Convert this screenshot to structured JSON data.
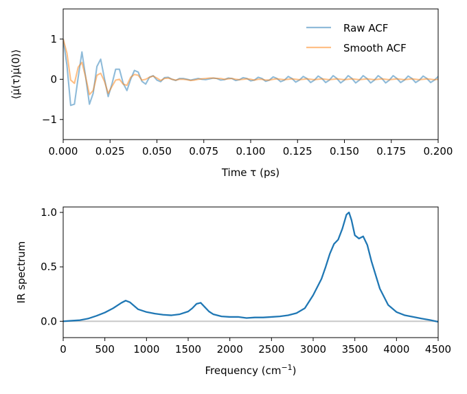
{
  "chart_data": [
    {
      "type": "line",
      "title": "",
      "xlabel": "Time τ (ps)",
      "ylabel": "⟨μ̇(τ)μ̇(0)⟩",
      "xlim": [
        0,
        0.2
      ],
      "ylim": [
        -1.5,
        1.75
      ],
      "xticks": [
        0.0,
        0.025,
        0.05,
        0.075,
        0.1,
        0.125,
        0.15,
        0.175,
        0.2
      ],
      "xtick_labels": [
        "0.000",
        "0.025",
        "0.050",
        "0.075",
        "0.100",
        "0.125",
        "0.150",
        "0.175",
        "0.200"
      ],
      "yticks": [
        -1,
        0,
        1
      ],
      "ytick_labels": [
        "−1",
        "0",
        "1"
      ],
      "legend_position": "top-right",
      "series": [
        {
          "name": "Raw ACF",
          "color": "#1f77b4",
          "opacity": 0.5,
          "x": [
            0.0,
            0.002,
            0.004,
            0.006,
            0.008,
            0.01,
            0.012,
            0.014,
            0.016,
            0.018,
            0.02,
            0.022,
            0.024,
            0.026,
            0.028,
            0.03,
            0.032,
            0.034,
            0.036,
            0.038,
            0.04,
            0.042,
            0.044,
            0.046,
            0.048,
            0.05,
            0.052,
            0.054,
            0.056,
            0.058,
            0.06,
            0.062,
            0.064,
            0.066,
            0.068,
            0.07,
            0.072,
            0.074,
            0.076,
            0.078,
            0.08,
            0.082,
            0.084,
            0.086,
            0.088,
            0.09,
            0.092,
            0.094,
            0.096,
            0.098,
            0.1,
            0.102,
            0.104,
            0.106,
            0.108,
            0.11,
            0.112,
            0.114,
            0.116,
            0.118,
            0.12,
            0.122,
            0.124,
            0.126,
            0.128,
            0.13,
            0.132,
            0.134,
            0.136,
            0.138,
            0.14,
            0.142,
            0.144,
            0.146,
            0.148,
            0.15,
            0.152,
            0.154,
            0.156,
            0.158,
            0.16,
            0.162,
            0.164,
            0.166,
            0.168,
            0.17,
            0.172,
            0.174,
            0.176,
            0.178,
            0.18,
            0.182,
            0.184,
            0.186,
            0.188,
            0.19,
            0.192,
            0.194,
            0.196,
            0.198,
            0.2
          ],
          "y": [
            1.0,
            0.35,
            -0.65,
            -0.62,
            0.05,
            0.68,
            0.05,
            -0.62,
            -0.35,
            0.32,
            0.5,
            0.02,
            -0.43,
            -0.12,
            0.25,
            0.25,
            -0.1,
            -0.28,
            0.0,
            0.22,
            0.18,
            -0.05,
            -0.12,
            0.05,
            0.09,
            -0.02,
            -0.06,
            0.04,
            0.05,
            0.0,
            -0.03,
            0.02,
            0.02,
            0.0,
            -0.02,
            0.0,
            0.02,
            0.0,
            -0.01,
            0.01,
            0.03,
            0.02,
            -0.02,
            -0.01,
            0.03,
            0.02,
            -0.03,
            -0.01,
            0.04,
            0.02,
            -0.04,
            -0.02,
            0.05,
            0.02,
            -0.05,
            -0.02,
            0.06,
            0.02,
            -0.06,
            -0.02,
            0.07,
            0.02,
            -0.07,
            -0.02,
            0.07,
            0.02,
            -0.08,
            -0.02,
            0.08,
            0.02,
            -0.08,
            -0.02,
            0.09,
            0.02,
            -0.09,
            -0.02,
            0.09,
            0.02,
            -0.09,
            -0.02,
            0.09,
            0.02,
            -0.09,
            -0.02,
            0.09,
            0.02,
            -0.09,
            -0.02,
            0.09,
            0.02,
            -0.08,
            -0.02,
            0.08,
            0.02,
            -0.08,
            -0.02,
            0.08,
            0.02,
            -0.08,
            -0.02,
            0.07
          ]
        },
        {
          "name": "Smooth ACF",
          "color": "#ff7f0e",
          "opacity": 0.5,
          "x": [
            0.0,
            0.002,
            0.004,
            0.006,
            0.008,
            0.01,
            0.012,
            0.014,
            0.016,
            0.018,
            0.02,
            0.022,
            0.024,
            0.026,
            0.028,
            0.03,
            0.032,
            0.034,
            0.036,
            0.038,
            0.04,
            0.042,
            0.044,
            0.046,
            0.048,
            0.05,
            0.052,
            0.054,
            0.056,
            0.058,
            0.06,
            0.062,
            0.064,
            0.066,
            0.068,
            0.07,
            0.072,
            0.074,
            0.076,
            0.078,
            0.08,
            0.082,
            0.084,
            0.086,
            0.088,
            0.09,
            0.092,
            0.094,
            0.096,
            0.098,
            0.1,
            0.102,
            0.104,
            0.106,
            0.108,
            0.11,
            0.112,
            0.114,
            0.116,
            0.118,
            0.12,
            0.122,
            0.124,
            0.126,
            0.128,
            0.13,
            0.132,
            0.134,
            0.136,
            0.138,
            0.14,
            0.142,
            0.144,
            0.146,
            0.148,
            0.15,
            0.152,
            0.154,
            0.156,
            0.158,
            0.16,
            0.162,
            0.164,
            0.166,
            0.168,
            0.17,
            0.172,
            0.174,
            0.176,
            0.178,
            0.18,
            0.182,
            0.184,
            0.186,
            0.188,
            0.19,
            0.192,
            0.194,
            0.196,
            0.198,
            0.2
          ],
          "y": [
            1.0,
            0.65,
            -0.02,
            -0.1,
            0.3,
            0.42,
            0.05,
            -0.38,
            -0.28,
            0.1,
            0.15,
            -0.05,
            -0.35,
            -0.18,
            -0.02,
            0.0,
            -0.12,
            -0.15,
            0.05,
            0.12,
            0.1,
            -0.02,
            0.0,
            0.05,
            0.08,
            0.03,
            -0.03,
            0.02,
            0.03,
            0.0,
            -0.02,
            0.0,
            0.0,
            -0.01,
            -0.03,
            -0.02,
            0.0,
            0.01,
            0.02,
            0.03,
            0.03,
            0.02,
            0.02,
            0.0,
            0.01,
            0.02,
            0.0,
            -0.01,
            0.0,
            0.01,
            0.0,
            -0.02,
            0.0,
            0.0,
            -0.02,
            -0.02,
            0.0,
            0.01,
            0.0,
            -0.01,
            0.0,
            0.01,
            0.0,
            -0.01,
            0.0,
            0.01,
            0.0,
            -0.01,
            0.0,
            0.01,
            0.0,
            -0.01,
            0.0,
            0.01,
            0.0,
            -0.01,
            0.0,
            0.01,
            0.0,
            -0.01,
            0.0,
            0.01,
            0.0,
            -0.01,
            0.0,
            0.01,
            0.0,
            -0.01,
            0.0,
            0.01,
            0.0,
            -0.01,
            0.0,
            0.01,
            0.0,
            -0.01,
            0.0,
            0.01,
            0.0,
            -0.01,
            0.0
          ]
        }
      ]
    },
    {
      "type": "line",
      "title": "",
      "xlabel": "Frequency (cm",
      "xlabel_sup": "−1",
      "xlabel_tail": ")",
      "ylabel": "IR spectrum",
      "xlim": [
        0,
        4500
      ],
      "ylim": [
        -0.15,
        1.05
      ],
      "xticks": [
        0,
        500,
        1000,
        1500,
        2000,
        2500,
        3000,
        3500,
        4000,
        4500
      ],
      "xtick_labels": [
        "0",
        "500",
        "1000",
        "1500",
        "2000",
        "2500",
        "3000",
        "3500",
        "4000",
        "4500"
      ],
      "yticks": [
        0.0,
        0.5,
        1.0
      ],
      "ytick_labels": [
        "0.0",
        "0.5",
        "1.0"
      ],
      "baseline": {
        "y": 0.0,
        "color": "#c8c8c8"
      },
      "series": [
        {
          "name": "IR spectrum",
          "color": "#1f77b4",
          "x": [
            0,
            100,
            200,
            300,
            400,
            500,
            600,
            700,
            750,
            800,
            900,
            1000,
            1100,
            1200,
            1300,
            1400,
            1500,
            1550,
            1600,
            1650,
            1700,
            1750,
            1800,
            1900,
            2000,
            2100,
            2200,
            2300,
            2400,
            2500,
            2600,
            2700,
            2800,
            2900,
            3000,
            3100,
            3150,
            3200,
            3250,
            3300,
            3350,
            3400,
            3430,
            3460,
            3500,
            3550,
            3600,
            3650,
            3700,
            3800,
            3900,
            4000,
            4100,
            4200,
            4300,
            4400,
            4500
          ],
          "y": [
            0.0,
            0.005,
            0.01,
            0.025,
            0.05,
            0.08,
            0.12,
            0.17,
            0.19,
            0.175,
            0.11,
            0.085,
            0.07,
            0.06,
            0.055,
            0.065,
            0.09,
            0.12,
            0.16,
            0.17,
            0.13,
            0.09,
            0.065,
            0.045,
            0.04,
            0.04,
            0.03,
            0.035,
            0.035,
            0.04,
            0.045,
            0.055,
            0.075,
            0.12,
            0.24,
            0.39,
            0.5,
            0.62,
            0.71,
            0.75,
            0.85,
            0.98,
            1.0,
            0.93,
            0.79,
            0.76,
            0.78,
            0.7,
            0.55,
            0.3,
            0.15,
            0.085,
            0.055,
            0.04,
            0.025,
            0.012,
            -0.005
          ]
        }
      ]
    }
  ]
}
